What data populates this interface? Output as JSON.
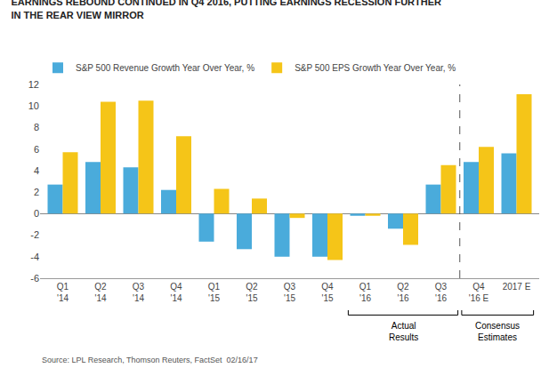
{
  "chart_data": {
    "type": "bar",
    "title": "EARNINGS REBOUND CONTINUED IN Q4 2016, PUTTING EARNINGS RECESSION FURTHER\nIN THE REAR VIEW MIRROR",
    "categories": [
      "Q1\n'14",
      "Q2\n'14",
      "Q3\n'14",
      "Q4\n'14",
      "Q1\n'15",
      "Q2\n'15",
      "Q3\n'15",
      "Q4\n'15",
      "Q1\n'16",
      "Q2\n'16",
      "Q3\n'16",
      "Q4\n'16 E",
      "2017 E"
    ],
    "series": [
      {
        "name": "S&P 500 Revenue Growth Year Over Year, %",
        "color": "#4aabdb",
        "values": [
          2.7,
          4.8,
          4.3,
          2.2,
          -2.6,
          -3.3,
          -4.0,
          -4.0,
          -0.2,
          -1.4,
          2.7,
          4.8,
          5.6
        ]
      },
      {
        "name": "S&P 500 EPS Growth Year Over Year, %",
        "color": "#f5c518",
        "values": [
          5.7,
          10.4,
          10.5,
          7.2,
          2.3,
          1.4,
          -0.4,
          -4.3,
          -0.2,
          -2.9,
          4.5,
          6.2,
          11.1
        ]
      }
    ],
    "ylim": [
      -6,
      12
    ],
    "yticks": [
      -6,
      -4,
      -2,
      0,
      2,
      4,
      6,
      8,
      10,
      12
    ],
    "grid": false,
    "annotations": [
      {
        "text": "Actual\nResults",
        "span": [
          "Q1\n'16",
          "Q3\n'16"
        ]
      },
      {
        "text": "Consensus\nEstimates",
        "span": [
          "Q4\n'16 E",
          "2017 E"
        ]
      },
      {
        "text": "Source: LPL Research, Thomson Reuters, FactSet  02/16/17"
      }
    ]
  }
}
